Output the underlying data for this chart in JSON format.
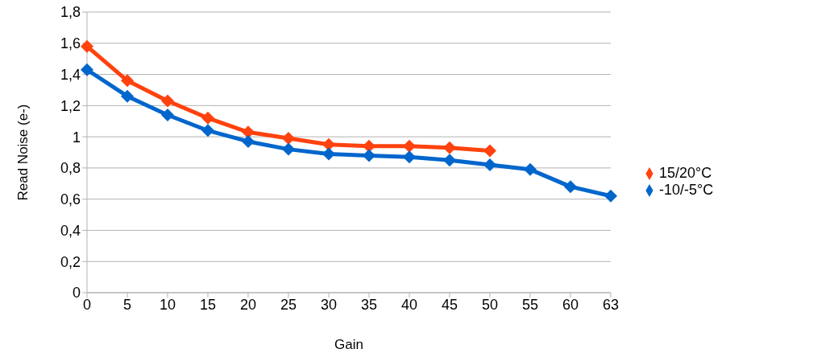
{
  "chart_data": {
    "type": "line",
    "xlabel": "Gain",
    "ylabel": "Read Noise (e-)",
    "categories": [
      "0",
      "5",
      "10",
      "15",
      "20",
      "25",
      "30",
      "35",
      "40",
      "45",
      "50",
      "55",
      "60",
      "63"
    ],
    "series": [
      {
        "name": "15/20°C",
        "color": "#ff420e",
        "values": [
          1.58,
          1.36,
          1.23,
          1.12,
          1.03,
          0.99,
          0.95,
          0.94,
          0.94,
          0.93,
          0.91,
          null,
          null,
          null
        ]
      },
      {
        "name": "-10/-5°C",
        "color": "#0066cc",
        "values": [
          1.43,
          1.26,
          1.14,
          1.04,
          0.97,
          0.92,
          0.89,
          0.88,
          0.87,
          0.85,
          0.82,
          0.79,
          0.68,
          0.62
        ]
      }
    ],
    "ylim": [
      0,
      1.8
    ],
    "yticks": [
      {
        "value": 0,
        "label": "0"
      },
      {
        "value": 0.2,
        "label": "0,2"
      },
      {
        "value": 0.4,
        "label": "0,4"
      },
      {
        "value": 0.6,
        "label": "0,6"
      },
      {
        "value": 0.8,
        "label": "0,8"
      },
      {
        "value": 1,
        "label": "1"
      },
      {
        "value": 1.2,
        "label": "1,2"
      },
      {
        "value": 1.4,
        "label": "1,4"
      },
      {
        "value": 1.6,
        "label": "1,6"
      },
      {
        "value": 1.8,
        "label": "1,8"
      }
    ],
    "grid": "y",
    "legend": "right",
    "marker": "diamond",
    "line_style": "solid"
  }
}
